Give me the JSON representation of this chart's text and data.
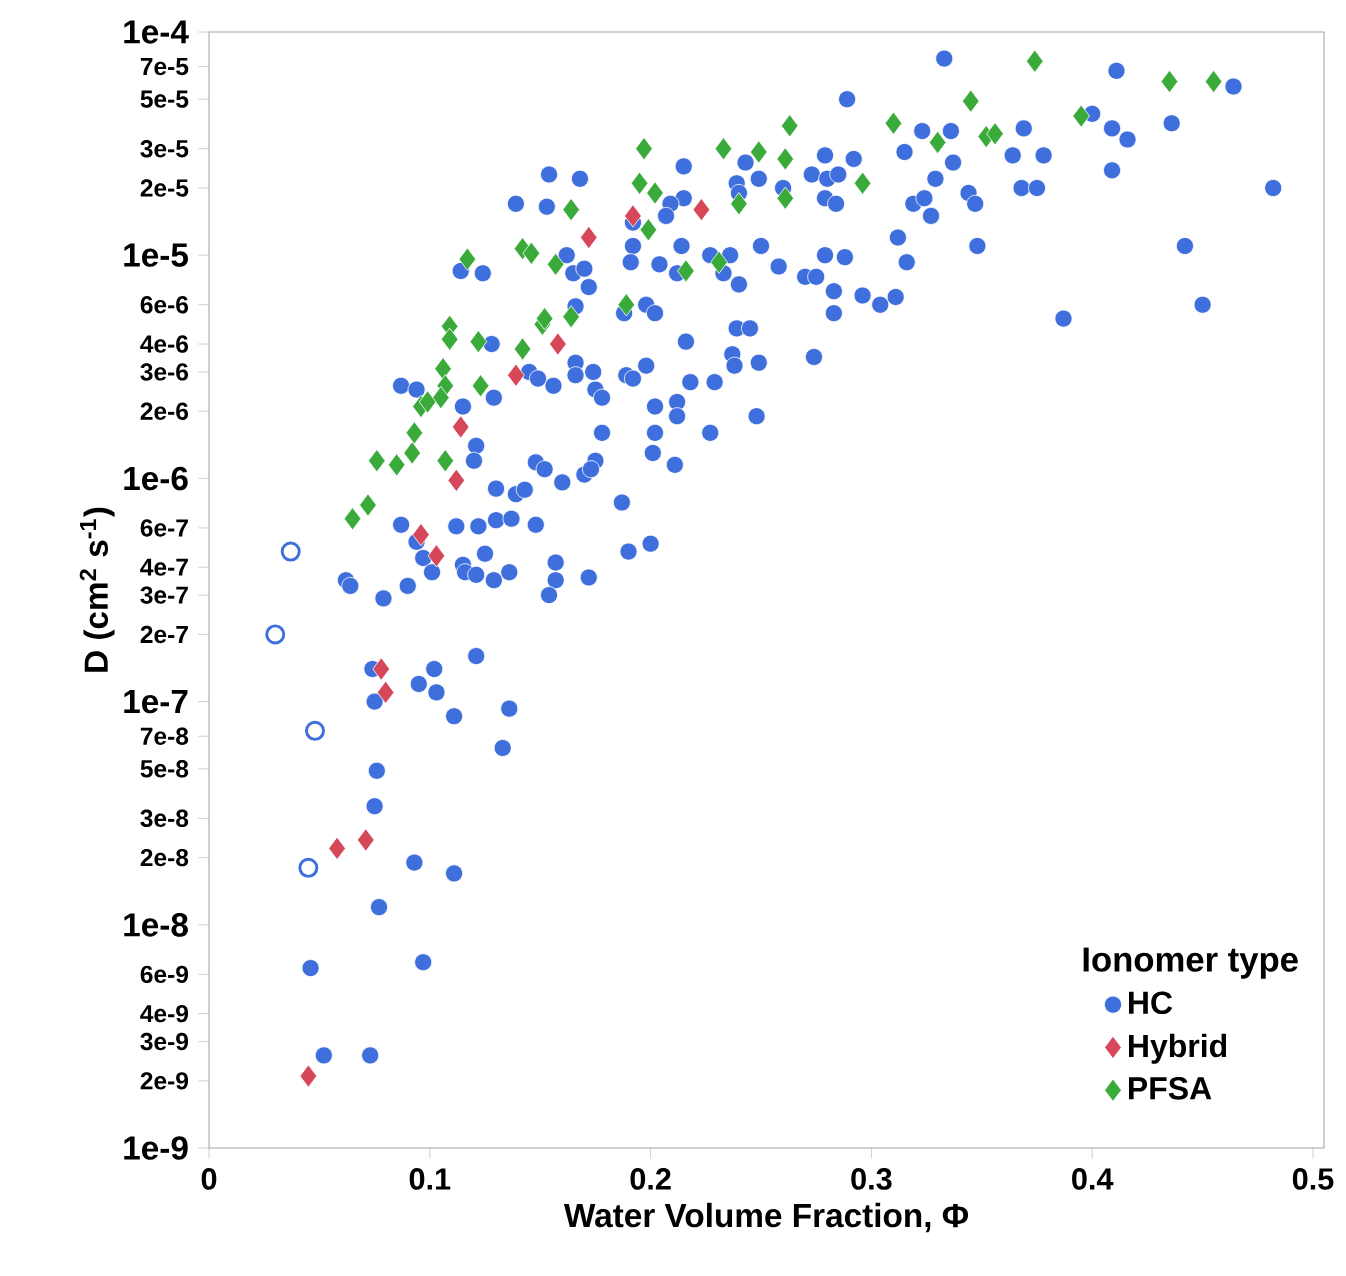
{
  "chart_data": {
    "type": "scatter",
    "xlabel": "Water Volume Fraction, Φ",
    "ylabel": "D (cm$^{2}$ s$^{-1}$)",
    "legend_title": "Ionomer type",
    "legend": "bottom right",
    "log": "y",
    "xlim": [
      0,
      0.505
    ],
    "ylim": [
      1e-09,
      0.0001
    ],
    "xticks": [
      0,
      0.1,
      0.2,
      0.3,
      0.4,
      0.5
    ],
    "yticks": [
      {
        "value": 0.0001,
        "label": "1e-4"
      },
      {
        "value": 7e-05,
        "label": "7e-5"
      },
      {
        "value": 5e-05,
        "label": "5e-5"
      },
      {
        "value": 3e-05,
        "label": "3e-5"
      },
      {
        "value": 2e-05,
        "label": "2e-5"
      },
      {
        "value": 1e-05,
        "label": "1e-5"
      },
      {
        "value": 6e-06,
        "label": "6e-6"
      },
      {
        "value": 4e-06,
        "label": "4e-6"
      },
      {
        "value": 3e-06,
        "label": "3e-6"
      },
      {
        "value": 2e-06,
        "label": "2e-6"
      },
      {
        "value": 1e-06,
        "label": "1e-6"
      },
      {
        "value": 6e-07,
        "label": "6e-7"
      },
      {
        "value": 4e-07,
        "label": "4e-7"
      },
      {
        "value": 3e-07,
        "label": "3e-7"
      },
      {
        "value": 2e-07,
        "label": "2e-7"
      },
      {
        "value": 1e-07,
        "label": "1e-7"
      },
      {
        "value": 7e-08,
        "label": "7e-8"
      },
      {
        "value": 5e-08,
        "label": "5e-8"
      },
      {
        "value": 3e-08,
        "label": "3e-8"
      },
      {
        "value": 2e-08,
        "label": "2e-8"
      },
      {
        "value": 1e-08,
        "label": "1e-8"
      },
      {
        "value": 6e-09,
        "label": "6e-9"
      },
      {
        "value": 4e-09,
        "label": "4e-9"
      },
      {
        "value": 3e-09,
        "label": "3e-9"
      },
      {
        "value": 2e-09,
        "label": "2e-9"
      },
      {
        "value": 1e-09,
        "label": "1e-9"
      }
    ],
    "series": [
      {
        "name": "HC",
        "color": "#3f6fdc",
        "marker": "circle",
        "x": [
          0.154,
          0.168,
          0.139,
          0.153,
          0.162,
          0.165,
          0.17,
          0.114,
          0.124,
          0.172,
          0.166,
          0.128,
          0.166,
          0.166,
          0.145,
          0.149,
          0.156,
          0.087,
          0.094,
          0.129,
          0.115,
          0.121,
          0.12,
          0.148,
          0.152,
          0.16,
          0.17,
          0.13,
          0.139,
          0.143,
          0.087,
          0.112,
          0.122,
          0.13,
          0.137,
          0.148,
          0.094,
          0.097,
          0.101,
          0.125,
          0.115,
          0.116,
          0.121,
          0.129,
          0.136,
          0.157,
          0.157,
          0.062,
          0.064,
          0.079,
          0.09,
          0.154,
          0.172,
          0.074,
          0.075,
          0.095,
          0.102,
          0.103,
          0.121,
          0.111,
          0.136,
          0.133,
          0.076,
          0.075,
          0.093,
          0.111,
          0.077,
          0.046,
          0.097,
          0.052,
          0.073,
          0.333,
          0.289,
          0.323,
          0.336,
          0.315,
          0.329,
          0.337,
          0.327,
          0.319,
          0.324,
          0.279,
          0.292,
          0.273,
          0.28,
          0.285,
          0.279,
          0.284,
          0.243,
          0.249,
          0.239,
          0.24,
          0.26,
          0.215,
          0.215,
          0.209,
          0.207,
          0.192,
          0.192,
          0.191,
          0.204,
          0.214,
          0.212,
          0.227,
          0.236,
          0.233,
          0.24,
          0.25,
          0.258,
          0.279,
          0.288,
          0.27,
          0.275,
          0.283,
          0.283,
          0.296,
          0.304,
          0.311,
          0.312,
          0.316,
          0.188,
          0.198,
          0.202,
          0.216,
          0.239,
          0.245,
          0.237,
          0.238,
          0.249,
          0.274,
          0.174,
          0.175,
          0.178,
          0.189,
          0.192,
          0.198,
          0.218,
          0.229,
          0.202,
          0.212,
          0.212,
          0.248,
          0.178,
          0.202,
          0.201,
          0.227,
          0.211,
          0.175,
          0.173,
          0.187,
          0.19,
          0.2,
          0.411,
          0.464,
          0.369,
          0.4,
          0.409,
          0.416,
          0.436,
          0.364,
          0.378,
          0.344,
          0.347,
          0.368,
          0.375,
          0.409,
          0.482,
          0.348,
          0.442,
          0.387,
          0.45
        ],
        "values": [
          2.3e-05,
          2.2e-05,
          1.7e-05,
          1.65e-05,
          1e-05,
          8.3e-06,
          8.7e-06,
          8.5e-06,
          8.3e-06,
          7.2e-06,
          5.9e-06,
          4e-06,
          3.3e-06,
          2.9e-06,
          3e-06,
          2.8e-06,
          2.6e-06,
          2.6e-06,
          2.5e-06,
          2.3e-06,
          2.1e-06,
          1.4e-06,
          1.2e-06,
          1.18e-06,
          1.1e-06,
          9.6e-07,
          1.04e-06,
          9e-07,
          8.5e-07,
          8.9e-07,
          6.2e-07,
          6.1e-07,
          6.1e-07,
          6.5e-07,
          6.6e-07,
          6.2e-07,
          5.2e-07,
          4.4e-07,
          3.8e-07,
          4.6e-07,
          4.1e-07,
          3.8e-07,
          3.7e-07,
          3.5e-07,
          3.8e-07,
          4.2e-07,
          3.5e-07,
          3.5e-07,
          3.3e-07,
          2.9e-07,
          3.3e-07,
          3e-07,
          3.6e-07,
          1.4e-07,
          1e-07,
          1.2e-07,
          1.4e-07,
          1.1e-07,
          1.6e-07,
          8.6e-08,
          9.3e-08,
          6.2e-08,
          4.9e-08,
          3.4e-08,
          1.9e-08,
          1.7e-08,
          1.2e-08,
          6.4e-09,
          6.8e-09,
          2.6e-09,
          2.6e-09,
          7.6e-05,
          5e-05,
          3.6e-05,
          3.6e-05,
          2.9e-05,
          2.2e-05,
          2.6e-05,
          1.5e-05,
          1.7e-05,
          1.8e-05,
          2.8e-05,
          2.7e-05,
          2.3e-05,
          2.2e-05,
          2.3e-05,
          1.8e-05,
          1.7e-05,
          2.6e-05,
          2.2e-05,
          2.1e-05,
          1.9e-05,
          2e-05,
          2.5e-05,
          1.8e-05,
          1.7e-05,
          1.5e-05,
          1.4e-05,
          1.1e-05,
          9.3e-06,
          9.1e-06,
          1.1e-05,
          8.3e-06,
          1e-05,
          1e-05,
          8.3e-06,
          7.4e-06,
          1.1e-05,
          8.9e-06,
          1e-05,
          9.8e-06,
          8e-06,
          8e-06,
          6.9e-06,
          5.5e-06,
          6.6e-06,
          6e-06,
          6.5e-06,
          1.2e-05,
          9.3e-06,
          5.5e-06,
          6e-06,
          5.5e-06,
          4.1e-06,
          4.7e-06,
          4.7e-06,
          3.6e-06,
          3.2e-06,
          3.3e-06,
          3.5e-06,
          3e-06,
          2.5e-06,
          2.3e-06,
          2.9e-06,
          2.8e-06,
          3.2e-06,
          2.7e-06,
          2.7e-06,
          2.1e-06,
          2.2e-06,
          1.9e-06,
          1.9e-06,
          1.6e-06,
          1.6e-06,
          1.3e-06,
          1.6e-06,
          1.15e-06,
          1.2e-06,
          1.1e-06,
          7.8e-07,
          4.7e-07,
          5.1e-07,
          6.7e-05,
          5.7e-05,
          3.7e-05,
          4.3e-05,
          3.7e-05,
          3.3e-05,
          3.9e-05,
          2.8e-05,
          2.8e-05,
          1.9e-05,
          1.7e-05,
          2e-05,
          2e-05,
          2.4e-05,
          2e-05,
          1.1e-05,
          1.1e-05,
          5.2e-06,
          6e-06
        ]
      },
      {
        "name": "Hybrid",
        "color": "#d6475a",
        "marker": "diamond",
        "x": [
          0.192,
          0.223,
          0.172,
          0.158,
          0.139,
          0.114,
          0.112,
          0.096,
          0.103,
          0.078,
          0.08,
          0.058,
          0.071,
          0.045
        ],
        "values": [
          1.5e-05,
          1.6e-05,
          1.2e-05,
          4e-06,
          2.9e-06,
          1.7e-06,
          9.8e-07,
          5.6e-07,
          4.5e-07,
          1.4e-07,
          1.1e-07,
          2.2e-08,
          2.4e-08,
          2.1e-09
        ]
      },
      {
        "name": "PFSA",
        "color": "#3aab3a",
        "marker": "diamond",
        "x": [
          0.164,
          0.117,
          0.142,
          0.146,
          0.157,
          0.109,
          0.109,
          0.122,
          0.151,
          0.152,
          0.164,
          0.142,
          0.106,
          0.107,
          0.105,
          0.096,
          0.099,
          0.123,
          0.093,
          0.092,
          0.076,
          0.085,
          0.107,
          0.072,
          0.065,
          0.197,
          0.233,
          0.263,
          0.249,
          0.261,
          0.195,
          0.202,
          0.296,
          0.24,
          0.261,
          0.199,
          0.216,
          0.231,
          0.189,
          0.31,
          0.33,
          0.374,
          0.345,
          0.352,
          0.356,
          0.395,
          0.435,
          0.455
        ],
        "values": [
          1.6e-05,
          9.6e-06,
          1.07e-05,
          1.02e-05,
          9.1e-06,
          4.8e-06,
          4.2e-06,
          4.1e-06,
          4.9e-06,
          5.2e-06,
          5.3e-06,
          3.8e-06,
          3.1e-06,
          2.6e-06,
          2.3e-06,
          2.1e-06,
          2.2e-06,
          2.6e-06,
          1.6e-06,
          1.3e-06,
          1.2e-06,
          1.15e-06,
          1.2e-06,
          7.6e-07,
          6.6e-07,
          3e-05,
          3e-05,
          3.8e-05,
          2.9e-05,
          2.7e-05,
          2.1e-05,
          1.9e-05,
          2.1e-05,
          1.7e-05,
          1.8e-05,
          1.3e-05,
          8.5e-06,
          9.3e-06,
          6e-06,
          3.9e-05,
          3.2e-05,
          7.4e-05,
          4.9e-05,
          3.4e-05,
          3.5e-05,
          4.2e-05,
          6e-05,
          6e-05
        ]
      },
      {
        "color": "#3f6fdc",
        "marker": "circle",
        "x": [
          0.037,
          0.03,
          0.048,
          0.045
        ],
        "values": [
          4.7e-07,
          2e-07,
          7.4e-08,
          1.8e-08
        ]
      }
    ]
  }
}
